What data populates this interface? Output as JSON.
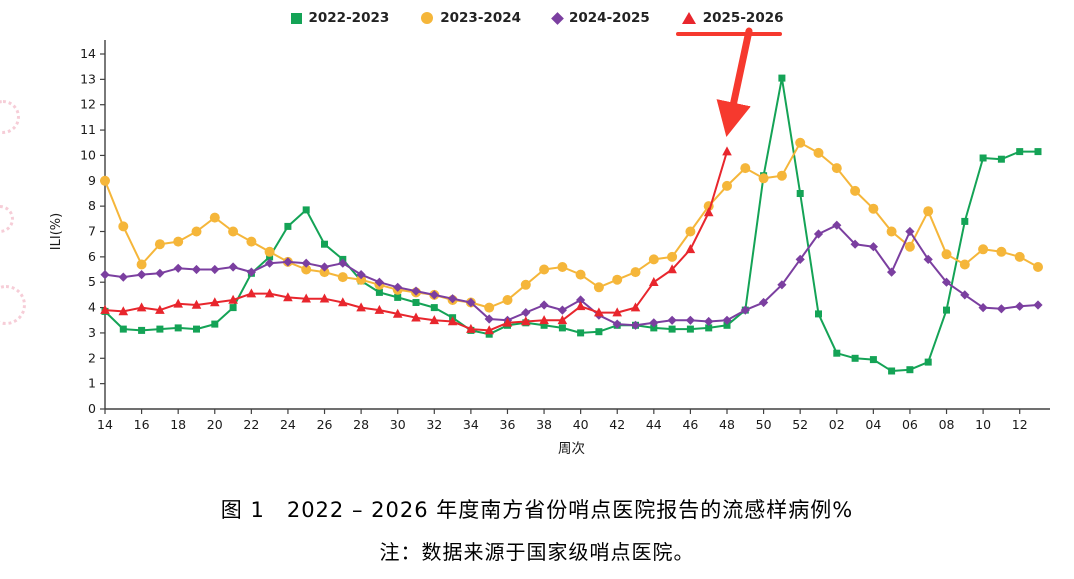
{
  "chart_data": {
    "type": "line",
    "title": "图 1　2022 – 2026 年度南方省份哨点医院报告的流感样病例%",
    "xlabel": "周次",
    "ylabel": "ILI(%)",
    "ylim": [
      0,
      14
    ],
    "grid": false,
    "legend_position": "top",
    "categories": [
      "14",
      "15",
      "16",
      "17",
      "18",
      "19",
      "20",
      "21",
      "22",
      "23",
      "24",
      "25",
      "26",
      "27",
      "28",
      "29",
      "30",
      "31",
      "32",
      "33",
      "34",
      "35",
      "36",
      "37",
      "38",
      "39",
      "40",
      "41",
      "42",
      "43",
      "44",
      "45",
      "46",
      "47",
      "48",
      "49",
      "50",
      "51",
      "52",
      "01",
      "02",
      "03",
      "04",
      "05",
      "06",
      "07",
      "08",
      "09",
      "10",
      "11",
      "12",
      "13"
    ],
    "series": [
      {
        "name": "2022-2023",
        "color": "#14a356",
        "marker": "square",
        "values": [
          3.85,
          3.15,
          3.1,
          3.15,
          3.2,
          3.15,
          3.35,
          4.0,
          5.35,
          6.0,
          7.2,
          7.85,
          6.5,
          5.9,
          5.05,
          4.6,
          4.4,
          4.2,
          4.0,
          3.6,
          3.1,
          2.95,
          3.3,
          3.4,
          3.3,
          3.2,
          3.0,
          3.05,
          3.3,
          3.3,
          3.2,
          3.15,
          3.15,
          3.2,
          3.3,
          3.9,
          9.2,
          13.05,
          8.5,
          3.75,
          2.2,
          2.0,
          1.95,
          1.5,
          1.55,
          1.85,
          3.9,
          7.4,
          9.9,
          9.85,
          10.15,
          10.15
        ]
      },
      {
        "name": "2023-2024",
        "color": "#f5b63a",
        "marker": "circle",
        "values": [
          9.0,
          7.2,
          5.7,
          6.5,
          6.6,
          7.0,
          7.55,
          7.0,
          6.6,
          6.2,
          5.8,
          5.5,
          5.4,
          5.2,
          5.1,
          4.9,
          4.7,
          4.6,
          4.5,
          4.3,
          4.2,
          4.0,
          4.3,
          4.9,
          5.5,
          5.6,
          5.3,
          4.8,
          5.1,
          5.4,
          5.9,
          6.0,
          7.0,
          8.0,
          8.8,
          9.5,
          9.1,
          9.2,
          10.5,
          10.1,
          9.5,
          8.6,
          7.9,
          7.0,
          6.4,
          7.8,
          6.1,
          5.7,
          6.3,
          6.2,
          6.0,
          5.6
        ]
      },
      {
        "name": "2024-2025",
        "color": "#7b3fa0",
        "marker": "diamond",
        "values": [
          5.3,
          5.2,
          5.3,
          5.35,
          5.55,
          5.5,
          5.5,
          5.6,
          5.4,
          5.75,
          5.8,
          5.75,
          5.6,
          5.75,
          5.3,
          5.0,
          4.8,
          4.65,
          4.5,
          4.35,
          4.2,
          3.55,
          3.5,
          3.8,
          4.1,
          3.9,
          4.3,
          3.7,
          3.35,
          3.3,
          3.4,
          3.5,
          3.5,
          3.45,
          3.5,
          3.9,
          4.2,
          4.9,
          5.9,
          6.9,
          7.25,
          6.5,
          6.4,
          5.4,
          7.0,
          5.9,
          5.0,
          4.5,
          4.0,
          3.95,
          4.05,
          4.1
        ]
      },
      {
        "name": "2025-2026",
        "color": "#e8262d",
        "marker": "triangle",
        "values": [
          3.9,
          3.85,
          4.0,
          3.9,
          4.15,
          4.1,
          4.2,
          4.3,
          4.55,
          4.55,
          4.4,
          4.35,
          4.35,
          4.2,
          4.0,
          3.9,
          3.75,
          3.6,
          3.5,
          3.45,
          3.15,
          3.1,
          3.4,
          3.45,
          3.5,
          3.5,
          4.05,
          3.8,
          3.8,
          4.0,
          5.0,
          5.5,
          6.3,
          7.75,
          10.15,
          null,
          null,
          null,
          null,
          null,
          null,
          null,
          null,
          null,
          null,
          null,
          null,
          null,
          null,
          null,
          null,
          null
        ]
      }
    ]
  },
  "captions": {
    "title": "图 1　2022 – 2026 年度南方省份哨点医院报告的流感样病例%",
    "note": "注：数据来源于国家级哨点医院。"
  },
  "annotations": {
    "arrow_color": "#f6392e",
    "underline_color": "#f6392e"
  }
}
